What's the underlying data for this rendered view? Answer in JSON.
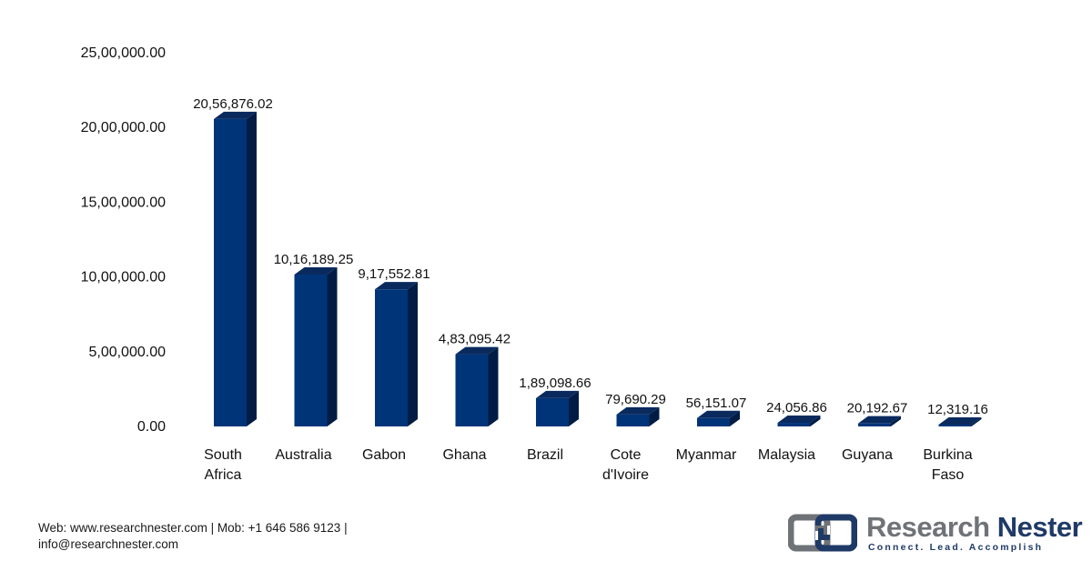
{
  "chart_data": {
    "type": "bar",
    "categories": [
      "South Africa",
      "Australia",
      "Gabon",
      "Ghana",
      "Brazil",
      "Cote d'Ivoire",
      "Myanmar",
      "Malaysia",
      "Guyana",
      "Burkina Faso"
    ],
    "category_lines": [
      [
        "South",
        "Africa"
      ],
      [
        "Australia"
      ],
      [
        "Gabon"
      ],
      [
        "Ghana"
      ],
      [
        "Brazil"
      ],
      [
        "Cote",
        "d'Ivoire"
      ],
      [
        "Myanmar"
      ],
      [
        "Malaysia"
      ],
      [
        "Guyana"
      ],
      [
        "Burkina",
        "Faso"
      ]
    ],
    "values": [
      2056876.02,
      1016189.25,
      917552.81,
      483095.42,
      189098.66,
      79690.29,
      56151.07,
      24056.86,
      20192.67,
      12319.16
    ],
    "data_labels": [
      "20,56,876.02",
      "10,16,189.25",
      "9,17,552.81",
      "4,83,095.42",
      "1,89,098.66",
      "79,690.29",
      "56,151.07",
      "24,056.86",
      "20,192.67",
      "12,319.16"
    ],
    "y_ticks": [
      0,
      500000,
      1000000,
      1500000,
      2000000,
      2500000
    ],
    "y_tick_labels": [
      "0.00",
      "5,00,000.00",
      "10,00,000.00",
      "15,00,000.00",
      "20,00,000.00",
      "25,00,000.00"
    ],
    "ylim": [
      0,
      2500000
    ],
    "title": "",
    "xlabel": "",
    "ylabel": "",
    "grid": false,
    "style": "3d-column",
    "colors": {
      "front": "#003478",
      "side": "#001c44",
      "top": "#0a2a5e"
    }
  },
  "footer": {
    "line1": "Web: www.researchnester.com | Mob: +1 646 586 9123 |",
    "line2": "info@researchnester.com"
  },
  "brand": {
    "word1": "Research",
    "word2": "Nester",
    "tagline": "Connect. Lead. Accomplish",
    "colors": {
      "gray": "#6f7377",
      "navy": "#1f3a66"
    },
    "logo_icon": "linked-squares-icon"
  }
}
